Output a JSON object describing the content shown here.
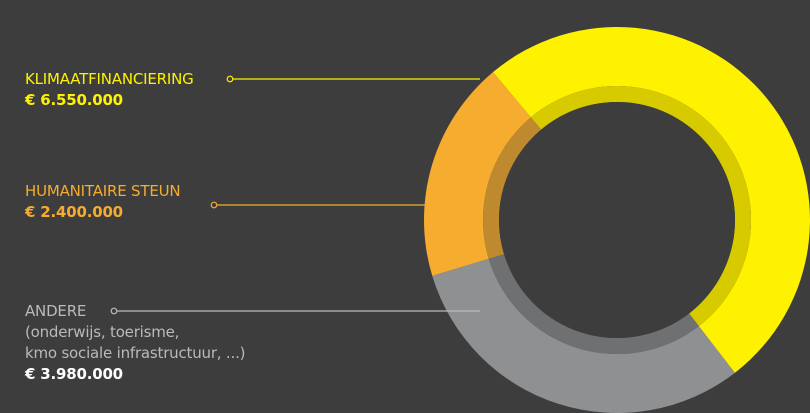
{
  "chart_data": {
    "type": "pie",
    "style": "donut",
    "legend_placement": "left, with leader lines",
    "total_shown": false,
    "slices": [
      {
        "label": "KLIMAATFINANCIERING",
        "note": "",
        "value": 6550000,
        "value_text": "€ 6.550.000",
        "color": "#fff200",
        "inner_color": "#d7cb00"
      },
      {
        "label": "HUMANITAIRE STEUN",
        "note": "",
        "value": 2400000,
        "value_text": "€ 2.400.000",
        "color": "#f5ac2f",
        "inner_color": "#bf8a2e"
      },
      {
        "label": "ANDERE",
        "note_lines": [
          "(onderwijs, toerisme,",
          "kmo sociale infrastructuur, ...)"
        ],
        "value": 3980000,
        "value_text": "€ 3.980.000",
        "color": "#8f9092",
        "inner_color": "#6f7072"
      }
    ]
  },
  "colors": {
    "background": "#3d3d3d"
  }
}
